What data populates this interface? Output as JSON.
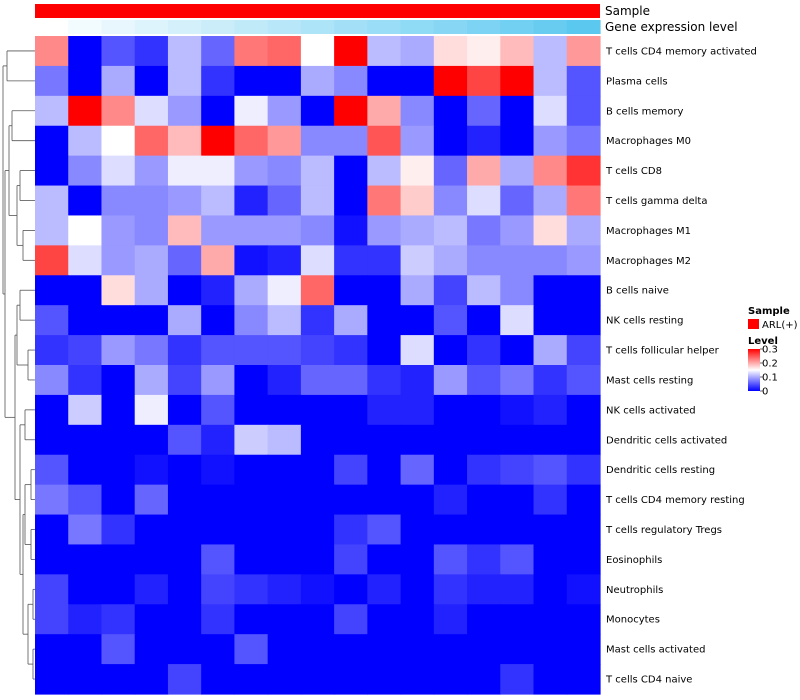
{
  "chart_data": {
    "type": "heatmap",
    "title": "",
    "annotation_tracks": [
      {
        "name": "Sample",
        "label": "Sample"
      },
      {
        "name": "Gene expression level",
        "label": "Gene expression level",
        "values": [
          0.0,
          0.08,
          0.14,
          0.2,
          0.26,
          0.32,
          0.38,
          0.44,
          0.5,
          0.56,
          0.62,
          0.68,
          0.74,
          0.8,
          0.86,
          0.92,
          1.0
        ]
      }
    ],
    "rows": [
      "T cells CD4 memory activated",
      "Plasma cells",
      "B cells memory",
      "Macrophages M0",
      "T cells CD8",
      "T cells gamma delta",
      "Macrophages M1",
      "Macrophages M2",
      "B cells naive",
      "NK cells resting",
      "T cells follicular helper",
      "Mast cells resting",
      "NK cells activated",
      "Dendritic cells activated",
      "Dendritic cells resting",
      "T cells CD4 memory resting",
      "T cells regulatory  Tregs",
      "Eosinophils",
      "Neutrophils",
      "Monocytes",
      "Mast cells activated",
      "T cells CD4 naive"
    ],
    "n_columns": 17,
    "values": [
      [
        0.22,
        0.0,
        0.05,
        0.03,
        0.11,
        0.06,
        0.23,
        0.24,
        0.15,
        0.3,
        0.11,
        0.1,
        0.17,
        0.16,
        0.19,
        0.11,
        0.21
      ],
      [
        0.07,
        0.0,
        0.1,
        0.0,
        0.11,
        0.03,
        0.0,
        0.0,
        0.1,
        0.08,
        0.0,
        0.0,
        0.3,
        0.26,
        0.3,
        0.11,
        0.05
      ],
      [
        0.11,
        0.3,
        0.22,
        0.13,
        0.09,
        0.0,
        0.14,
        0.09,
        0.0,
        0.3,
        0.2,
        0.08,
        0.0,
        0.06,
        0.0,
        0.13,
        0.05
      ],
      [
        0.0,
        0.11,
        0.15,
        0.24,
        0.19,
        0.3,
        0.24,
        0.21,
        0.08,
        0.08,
        0.25,
        0.09,
        0.0,
        0.02,
        0.0,
        0.09,
        0.07
      ],
      [
        0.0,
        0.08,
        0.13,
        0.09,
        0.14,
        0.14,
        0.09,
        0.08,
        0.11,
        0.0,
        0.11,
        0.16,
        0.06,
        0.2,
        0.1,
        0.22,
        0.27
      ],
      [
        0.11,
        0.0,
        0.08,
        0.08,
        0.09,
        0.11,
        0.02,
        0.06,
        0.11,
        0.0,
        0.23,
        0.18,
        0.08,
        0.13,
        0.06,
        0.1,
        0.23
      ],
      [
        0.11,
        0.15,
        0.09,
        0.08,
        0.19,
        0.09,
        0.09,
        0.09,
        0.08,
        0.01,
        0.09,
        0.1,
        0.11,
        0.07,
        0.09,
        0.17,
        0.1
      ],
      [
        0.26,
        0.13,
        0.09,
        0.1,
        0.06,
        0.2,
        0.01,
        0.02,
        0.13,
        0.03,
        0.03,
        0.12,
        0.1,
        0.08,
        0.08,
        0.08,
        0.09
      ],
      [
        0.0,
        0.0,
        0.17,
        0.1,
        0.0,
        0.02,
        0.1,
        0.14,
        0.24,
        0.0,
        0.0,
        0.1,
        0.04,
        0.11,
        0.08,
        0.0,
        0.0
      ],
      [
        0.05,
        0.0,
        0.0,
        0.0,
        0.1,
        0.0,
        0.08,
        0.11,
        0.03,
        0.1,
        0.0,
        0.0,
        0.05,
        0.0,
        0.13,
        0.0,
        0.0
      ],
      [
        0.03,
        0.04,
        0.09,
        0.07,
        0.03,
        0.05,
        0.05,
        0.05,
        0.04,
        0.03,
        0.0,
        0.13,
        0.0,
        0.03,
        0.0,
        0.1,
        0.04
      ],
      [
        0.08,
        0.03,
        0.0,
        0.1,
        0.04,
        0.09,
        0.0,
        0.02,
        0.06,
        0.06,
        0.03,
        0.02,
        0.09,
        0.05,
        0.07,
        0.03,
        0.05
      ],
      [
        0.0,
        0.12,
        0.0,
        0.14,
        0.0,
        0.05,
        0.0,
        0.0,
        0.0,
        0.0,
        0.02,
        0.02,
        0.0,
        0.0,
        0.01,
        0.02,
        0.0
      ],
      [
        0.0,
        0.0,
        0.0,
        0.0,
        0.05,
        0.02,
        0.12,
        0.11,
        0.0,
        0.0,
        0.0,
        0.0,
        0.0,
        0.0,
        0.0,
        0.0,
        0.0
      ],
      [
        0.05,
        0.0,
        0.0,
        0.01,
        0.0,
        0.01,
        0.0,
        0.0,
        0.0,
        0.04,
        0.0,
        0.06,
        0.0,
        0.03,
        0.04,
        0.05,
        0.03
      ],
      [
        0.07,
        0.05,
        0.0,
        0.06,
        0.0,
        0.0,
        0.0,
        0.0,
        0.0,
        0.0,
        0.0,
        0.0,
        0.02,
        0.0,
        0.0,
        0.03,
        0.0
      ],
      [
        0.0,
        0.07,
        0.03,
        0.0,
        0.0,
        0.0,
        0.0,
        0.0,
        0.0,
        0.03,
        0.05,
        0.0,
        0.0,
        0.0,
        0.0,
        0.0,
        0.0
      ],
      [
        0.0,
        0.0,
        0.0,
        0.0,
        0.0,
        0.05,
        0.0,
        0.0,
        0.0,
        0.04,
        0.0,
        0.0,
        0.05,
        0.03,
        0.05,
        0.0,
        0.0
      ],
      [
        0.04,
        0.0,
        0.0,
        0.02,
        0.0,
        0.04,
        0.03,
        0.02,
        0.01,
        0.0,
        0.02,
        0.0,
        0.03,
        0.02,
        0.02,
        0.0,
        0.01
      ],
      [
        0.04,
        0.02,
        0.03,
        0.0,
        0.0,
        0.03,
        0.0,
        0.0,
        0.0,
        0.04,
        0.0,
        0.0,
        0.02,
        0.0,
        0.0,
        0.0,
        0.0
      ],
      [
        0.0,
        0.0,
        0.05,
        0.0,
        0.0,
        0.0,
        0.05,
        0.0,
        0.0,
        0.0,
        0.0,
        0.0,
        0.0,
        0.0,
        0.0,
        0.0,
        0.0
      ],
      [
        0.0,
        0.0,
        0.0,
        0.0,
        0.04,
        0.0,
        0.0,
        0.0,
        0.0,
        0.0,
        0.0,
        0.0,
        0.0,
        0.0,
        0.03,
        0.0,
        0.0
      ]
    ],
    "color_scale": {
      "min": 0,
      "mid": 0.15,
      "max": 0.3,
      "low": "#0000FF",
      "midcolor": "#FFFFFF",
      "high": "#FF0000"
    },
    "legend": {
      "sample_title": "Sample",
      "sample_entries": [
        {
          "label": "ARL(+)",
          "color": "#FF0000"
        }
      ],
      "level_title": "Level",
      "level_ticks": [
        {
          "value": 0.3,
          "label": "0.3"
        },
        {
          "value": 0.2,
          "label": "0.2"
        },
        {
          "value": 0.1,
          "label": "0.1"
        },
        {
          "value": 0.0,
          "label": "0"
        }
      ],
      "placement": "right"
    },
    "expression_track_colors": {
      "low": "#FFFFFF",
      "high": "#5BC8F0"
    },
    "row_dendrogram": "left"
  }
}
